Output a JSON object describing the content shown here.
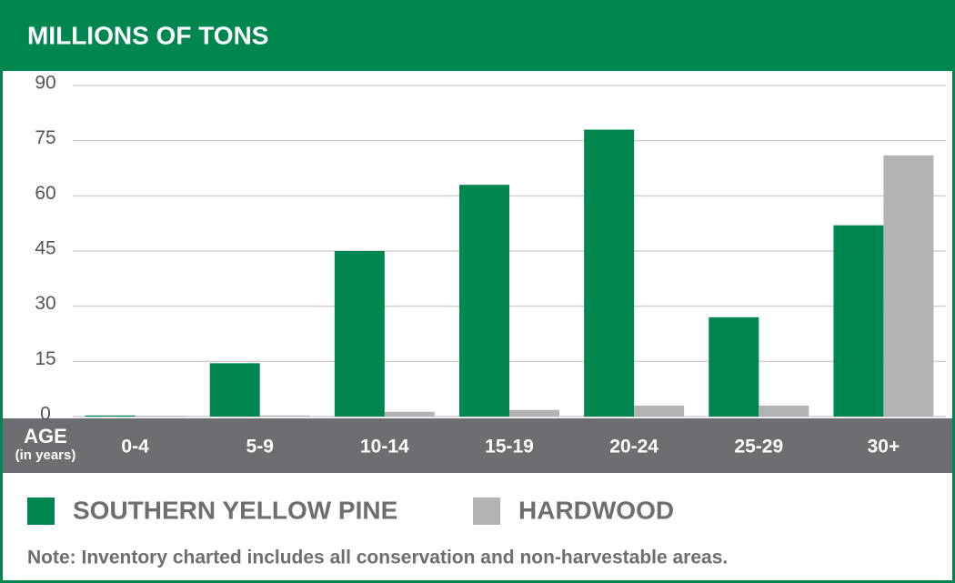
{
  "chart_data": {
    "type": "bar",
    "title": "MILLIONS OF TONS",
    "x_label": "AGE",
    "x_sublabel": "(in years)",
    "categories": [
      "0-4",
      "5-9",
      "10-14",
      "15-19",
      "20-24",
      "25-29",
      "30+"
    ],
    "series": [
      {
        "name": "SOUTHERN YELLOW PINE",
        "color": "#008751",
        "values": [
          0.3,
          14.5,
          45,
          63,
          78,
          27,
          52
        ]
      },
      {
        "name": "HARDWOOD",
        "color": "#b3b3b3",
        "values": [
          0.2,
          0.3,
          1.3,
          1.8,
          3,
          3,
          71
        ]
      }
    ],
    "ylim": [
      0,
      90
    ],
    "yticks": [
      0,
      15,
      30,
      45,
      60,
      75,
      90
    ],
    "grid": true,
    "legend": "bottom",
    "note": "Note: Inventory charted includes all conservation and non-harvestable areas."
  }
}
